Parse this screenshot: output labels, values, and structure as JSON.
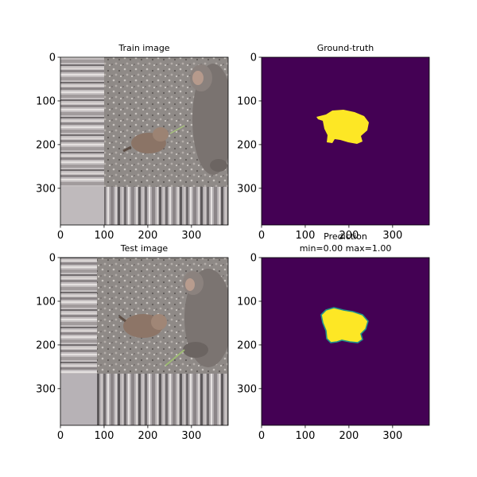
{
  "chart_data": [
    {
      "type": "image",
      "title": "Train image",
      "xlim": [
        0,
        384
      ],
      "ylim": [
        384,
        0
      ],
      "xticks": [
        0,
        100,
        200,
        300
      ],
      "yticks": [
        0,
        100,
        200,
        300
      ],
      "content": "photo: small monkey lying on gravel, adult monkey on right; padded with edge-stretched stripes"
    },
    {
      "type": "heatmap",
      "title": "Ground-truth",
      "xlim": [
        0,
        384
      ],
      "ylim": [
        384,
        0
      ],
      "xticks": [
        0,
        100,
        200,
        300
      ],
      "yticks": [
        0,
        100,
        200,
        300
      ],
      "colormap": "viridis",
      "background_color": "#440154",
      "mask_color": "#fde725"
    },
    {
      "type": "image",
      "title": "Test image",
      "xlim": [
        0,
        384
      ],
      "ylim": [
        384,
        0
      ],
      "xticks": [
        0,
        100,
        200,
        300
      ],
      "yticks": [
        0,
        100,
        200,
        300
      ],
      "content": "photo: small monkey crouched on gravel, adult monkey on right; padded with edge-stretched stripes"
    },
    {
      "type": "heatmap",
      "title": "Prediction",
      "subtitle": "min=0.00 max=1.00",
      "xlim": [
        0,
        384
      ],
      "ylim": [
        384,
        0
      ],
      "xticks": [
        0,
        100,
        200,
        300
      ],
      "yticks": [
        0,
        100,
        200,
        300
      ],
      "colormap": "viridis",
      "min": 0.0,
      "max": 1.0,
      "background_color": "#440154",
      "mask_color": "#fde725",
      "edge_color": "#21918c"
    }
  ]
}
